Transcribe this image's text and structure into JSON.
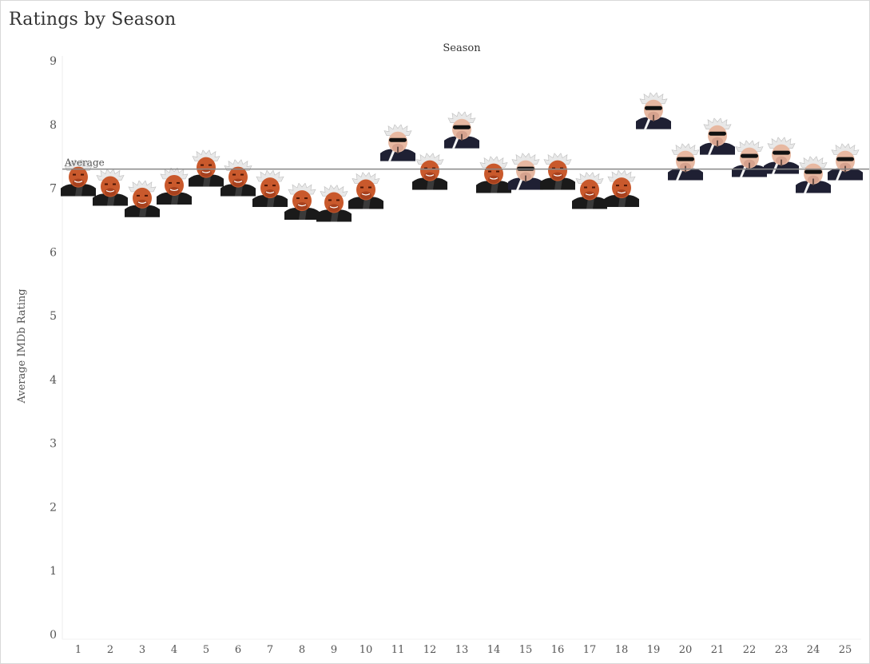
{
  "title": "Ratings by Season",
  "chart_data": {
    "type": "scatter",
    "title": "Ratings by Season",
    "xlabel": "Season",
    "ylabel": "Average IMDb Rating",
    "x": [
      "1",
      "2",
      "3",
      "4",
      "5",
      "6",
      "7",
      "8",
      "9",
      "10",
      "11",
      "12",
      "13",
      "14",
      "15",
      "16",
      "17",
      "18",
      "19",
      "20",
      "21",
      "22",
      "23",
      "24",
      "25"
    ],
    "y": [
      7.05,
      6.9,
      6.72,
      6.92,
      7.2,
      7.05,
      6.88,
      6.68,
      6.65,
      6.85,
      7.6,
      7.15,
      7.8,
      7.1,
      7.15,
      7.15,
      6.85,
      6.88,
      8.1,
      7.3,
      7.7,
      7.35,
      7.4,
      7.1,
      7.3
    ],
    "ylim": [
      0,
      9
    ],
    "yticks": [
      "0",
      "1",
      "2",
      "3",
      "4",
      "5",
      "6",
      "7",
      "8",
      "9"
    ],
    "reference_line": {
      "label": "Average",
      "value": 7.3
    },
    "marker_style": [
      "red",
      "red",
      "red",
      "red",
      "red",
      "red",
      "red",
      "red",
      "red",
      "red",
      "sunglasses",
      "red",
      "sunglasses",
      "red",
      "sunglasses",
      "red",
      "red",
      "red",
      "sunglasses",
      "sunglasses",
      "sunglasses",
      "sunglasses",
      "sunglasses",
      "sunglasses",
      "sunglasses"
    ],
    "grid": false,
    "colors": {
      "axis_text": "#555555",
      "average_line": "#888888",
      "title": "#333333"
    }
  }
}
